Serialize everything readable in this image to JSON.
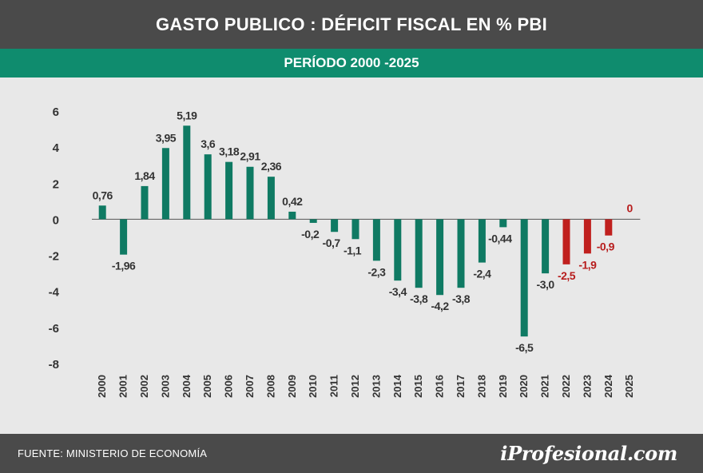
{
  "header": {
    "title": "GASTO PUBLICO : DÉFICIT FISCAL EN % PBI",
    "subtitle": "PERÍODO 2000 -2025"
  },
  "footer": {
    "source": "FUENTE: MINISTERIO DE ECONOMÍA",
    "logo": "iProfesional.com"
  },
  "colors": {
    "header_bg": "#4a4a4a",
    "subtitle_bg": "#0f8c6e",
    "bar_historical": "#0f7a63",
    "bar_projection": "#c0201e",
    "label_projection": "#b71c1c",
    "label_default": "#333333",
    "background": "#e8e8e8"
  },
  "chart_data": {
    "type": "bar",
    "title": "GASTO PUBLICO : DÉFICIT FISCAL EN % PBI",
    "subtitle": "PERÍODO 2000 -2025",
    "xlabel": "",
    "ylabel": "",
    "ylim": [
      -8,
      6
    ],
    "yticks": [
      6,
      4,
      2,
      0,
      -2,
      -4,
      -6,
      -8
    ],
    "grid": false,
    "categories": [
      "2000",
      "2001",
      "2002",
      "2003",
      "2004",
      "2005",
      "2006",
      "2007",
      "2008",
      "2009",
      "2010",
      "2011",
      "2012",
      "2013",
      "2014",
      "2015",
      "2016",
      "2017",
      "2018",
      "2019",
      "2020",
      "2021",
      "2022",
      "2023",
      "2024",
      "2025"
    ],
    "values": [
      0.76,
      -1.96,
      1.84,
      3.95,
      5.19,
      3.6,
      3.18,
      2.91,
      2.36,
      0.42,
      -0.2,
      -0.7,
      -1.1,
      -2.3,
      -3.4,
      -3.8,
      -4.2,
      -3.8,
      -2.4,
      -0.44,
      -6.5,
      -3.0,
      -2.5,
      -1.9,
      -0.9,
      0
    ],
    "labels": [
      "0,76",
      "-1,96",
      "1,84",
      "3,95",
      "5,19",
      "3,6",
      "3,18",
      "2,91",
      "2,36",
      "0,42",
      "-0,2",
      "-0,7",
      "-1,1",
      "-2,3",
      "-3,4",
      "-3,8",
      "-4,2",
      "-3,8",
      "-2,4",
      "-0,44",
      "-6,5",
      "-3,0",
      "-2,5",
      "-1,9",
      "-0,9",
      "0"
    ],
    "projection_categories": [
      "2022",
      "2023",
      "2024",
      "2025"
    ]
  }
}
